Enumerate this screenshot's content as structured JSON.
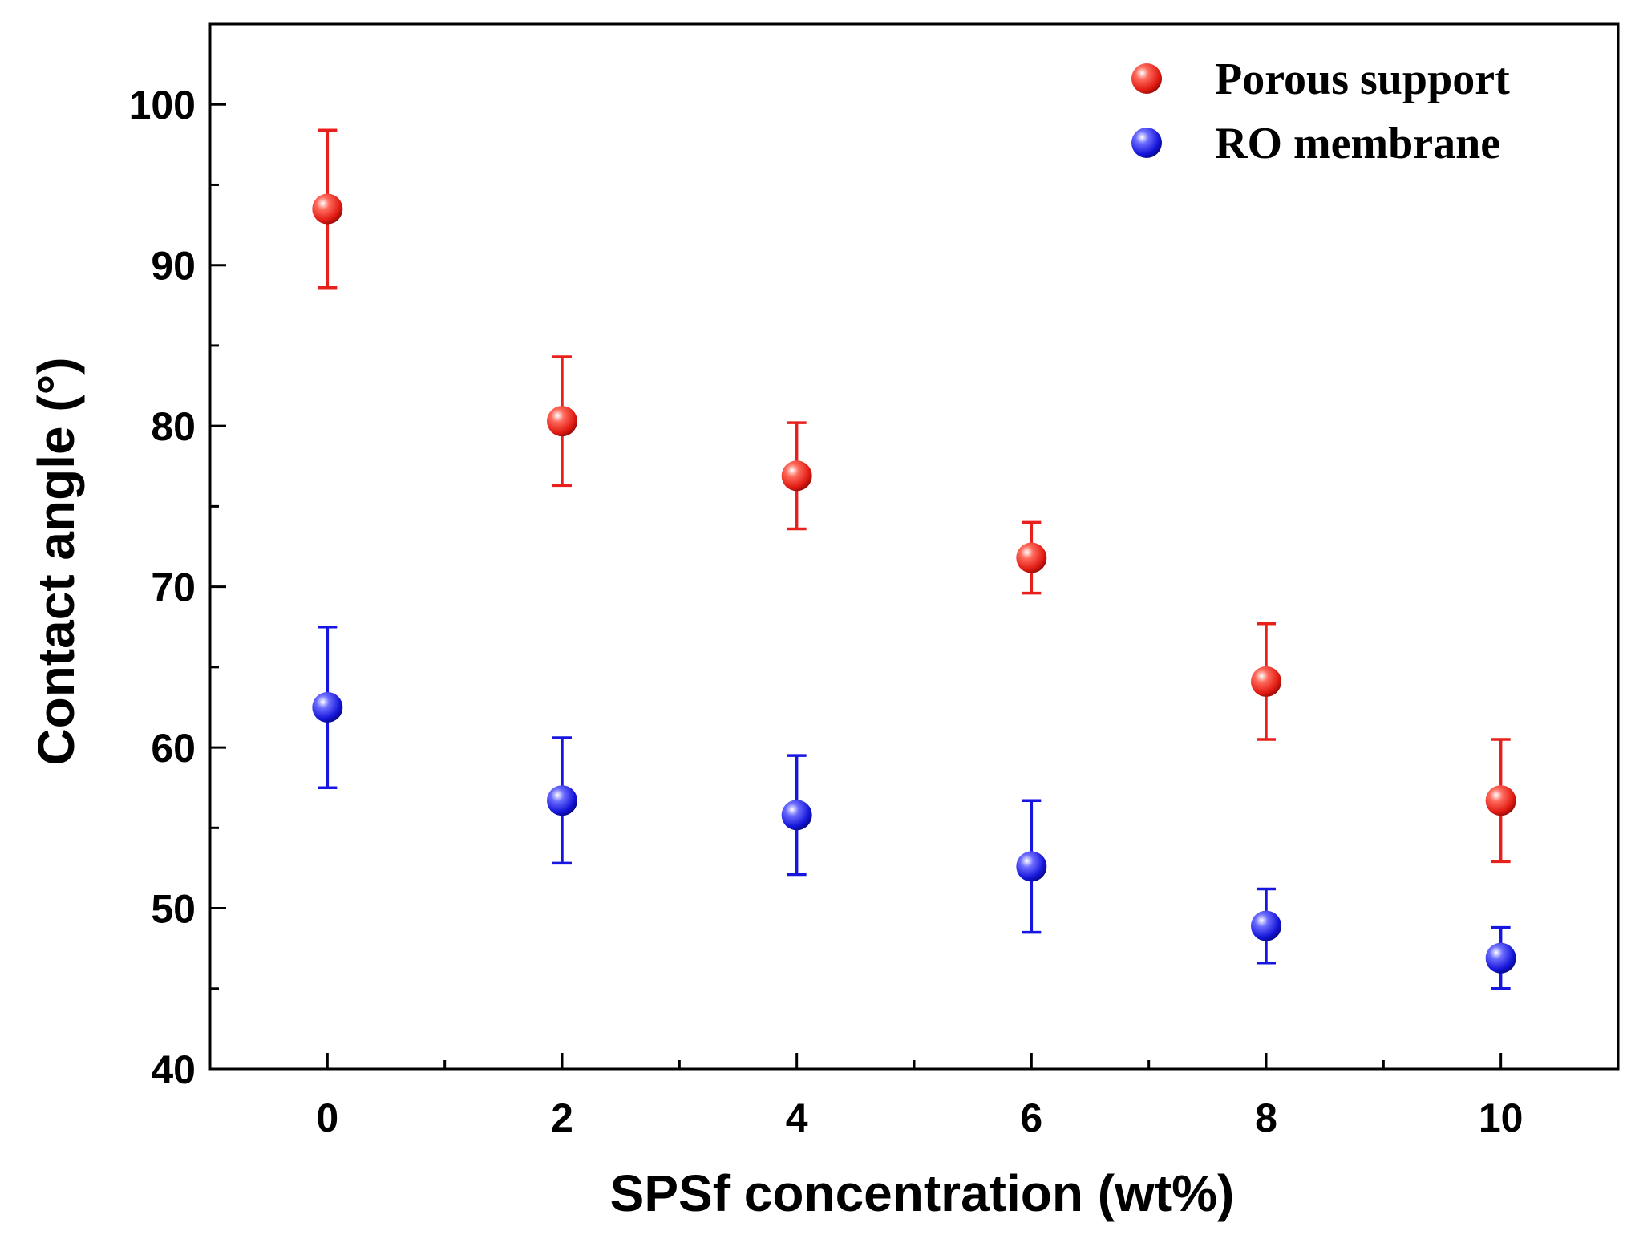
{
  "chart_data": {
    "type": "scatter",
    "title": "",
    "xlabel": "SPSf concentration (wt%)",
    "ylabel": "Contact angle (°)",
    "xlim": [
      -1,
      11
    ],
    "ylim": [
      40,
      105
    ],
    "x_ticks": [
      0,
      2,
      4,
      6,
      8,
      10
    ],
    "x_tick_labels": [
      "0",
      "2",
      "4",
      "6",
      "8",
      "10"
    ],
    "x_minor_ticks": [
      1,
      3,
      5,
      7,
      9
    ],
    "y_ticks": [
      40,
      50,
      60,
      70,
      80,
      90,
      100
    ],
    "y_tick_labels": [
      "40",
      "50",
      "60",
      "70",
      "80",
      "90",
      "100"
    ],
    "y_minor_ticks": [
      45,
      55,
      65,
      75,
      85,
      95
    ],
    "grid": false,
    "legend_position": "top-right",
    "series": [
      {
        "name": "Porous support",
        "color": "#e8201c",
        "x": [
          0,
          2,
          4,
          6,
          8,
          10
        ],
        "y": [
          93.5,
          80.3,
          76.9,
          71.8,
          64.1,
          56.7
        ],
        "err": [
          4.9,
          4.0,
          3.3,
          2.2,
          3.6,
          3.8
        ]
      },
      {
        "name": "RO membrane",
        "color": "#1616e0",
        "x": [
          0,
          2,
          4,
          6,
          8,
          10
        ],
        "y": [
          62.5,
          56.7,
          55.8,
          52.6,
          48.9,
          46.9
        ],
        "err": [
          5.0,
          3.9,
          3.7,
          4.1,
          2.3,
          1.9
        ]
      }
    ]
  }
}
